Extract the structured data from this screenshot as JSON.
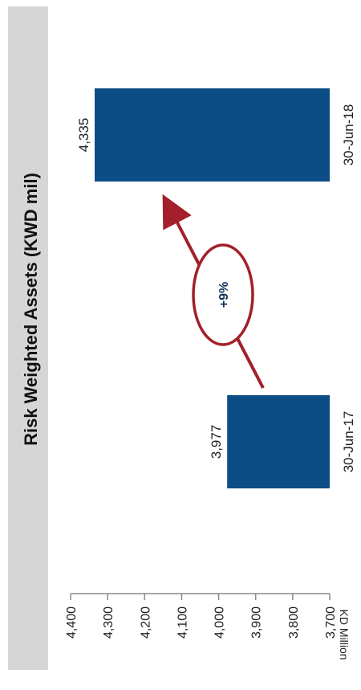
{
  "chart_data": {
    "type": "bar",
    "orientation": "vertical-bars-rotated-page",
    "title": "Risk Weighted Assets (KWD mil)",
    "ylabel": "KD Million",
    "categories": [
      "30-Jun-17",
      "30-Jun-18"
    ],
    "values": [
      3977,
      4335
    ],
    "value_labels": [
      "3,977",
      "4,335"
    ],
    "ylim": [
      3700,
      4400
    ],
    "yticks": [
      {
        "value": 3700,
        "label": "3,700"
      },
      {
        "value": 3800,
        "label": "3,800"
      },
      {
        "value": 3900,
        "label": "3,900"
      },
      {
        "value": 4000,
        "label": "4,000"
      },
      {
        "value": 4100,
        "label": "4,100"
      },
      {
        "value": 4200,
        "label": "4,200"
      },
      {
        "value": 4300,
        "label": "4,300"
      },
      {
        "value": 4400,
        "label": "4,400"
      }
    ],
    "annotation": "+9%",
    "grid": false,
    "colors": {
      "bar": "#0d4d86",
      "arrow": "#a31f2b",
      "annotation_text": "#0d2f58",
      "title_bg": "#d6d6d6",
      "axis": "#8a8a8a"
    }
  }
}
